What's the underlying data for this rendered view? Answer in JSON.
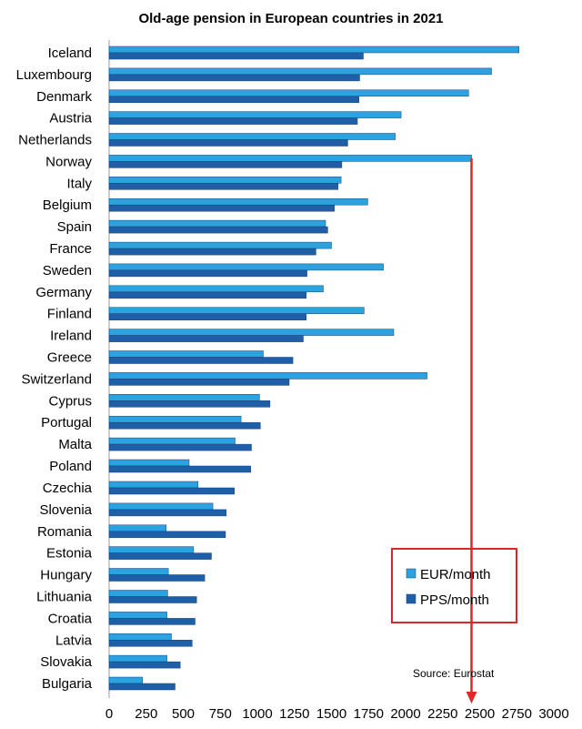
{
  "chart_data": {
    "type": "bar",
    "orientation": "horizontal",
    "title": "Old-age pension in European countries in 2021",
    "source": "Source: Eurostat",
    "categories": [
      "Iceland",
      "Luxembourg",
      "Denmark",
      "Austria",
      "Netherlands",
      "Norway",
      "Italy",
      "Belgium",
      "Spain",
      "France",
      "Sweden",
      "Germany",
      "Finland",
      "Ireland",
      "Greece",
      "Switzerland",
      "Cyprus",
      "Portugal",
      "Malta",
      "Poland",
      "Czechia",
      "Slovenia",
      "Romania",
      "Estonia",
      "Hungary",
      "Lithuania",
      "Croatia",
      "Latvia",
      "Slovakia",
      "Bulgaria"
    ],
    "series": [
      {
        "name": "EUR/month",
        "color": "#2ba3e0",
        "values": [
          2765,
          2580,
          2425,
          1970,
          1930,
          2445,
          1565,
          1745,
          1460,
          1500,
          1850,
          1445,
          1720,
          1920,
          1040,
          2145,
          1015,
          890,
          850,
          540,
          600,
          700,
          385,
          570,
          400,
          395,
          390,
          420,
          390,
          225
        ]
      },
      {
        "name": "PPS/month",
        "color": "#1f5fa8",
        "values": [
          1715,
          1690,
          1685,
          1675,
          1610,
          1570,
          1545,
          1520,
          1475,
          1395,
          1335,
          1330,
          1330,
          1310,
          1240,
          1215,
          1085,
          1020,
          960,
          955,
          845,
          790,
          785,
          690,
          645,
          590,
          580,
          560,
          480,
          445
        ]
      }
    ],
    "xlim": [
      0,
      3000
    ],
    "xticks": [
      "0",
      "250",
      "500",
      "750",
      "1000",
      "1250",
      "1500",
      "1750",
      "2000",
      "2250",
      "2500",
      "2750",
      "3000"
    ],
    "legend": {
      "position": "bottom-right",
      "border_color": "#d62828"
    },
    "annotation": {
      "type": "arrow",
      "color": "#e32626",
      "from_series": "EUR/month",
      "from_category": "Norway",
      "to_value": 2445
    }
  }
}
